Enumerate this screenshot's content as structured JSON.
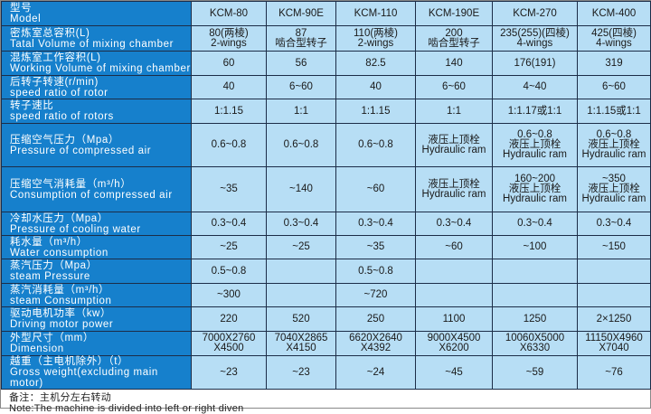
{
  "table": {
    "rows": [
      {
        "label": "型号\nModel",
        "values": [
          "KCM-80",
          "KCM-90E",
          "KCM-110",
          "KCM-190E",
          "KCM-270",
          "KCM-400"
        ]
      },
      {
        "label": "密炼室总容积(L)\nTatal Volume of mixing chamber",
        "values": [
          "80(两棱)\n2-wings",
          "87\n啮合型转子",
          "110(两棱)\n2-wings",
          "200\n啮合型转子",
          "235(255)(四棱)\n4-wings",
          "425(四棱)\n4-wings"
        ]
      },
      {
        "label": "混炼室工作容积(L)\nWorking Volume of mixing chamber",
        "values": [
          "60",
          "56",
          "82.5",
          "140",
          "176(191)",
          "319"
        ]
      },
      {
        "label": "后转子转速(r/min)\nspeed ratio of rotor",
        "values": [
          "40",
          "6~60",
          "40",
          "6~60",
          "4~40",
          "6~60"
        ]
      },
      {
        "label": "转子速比\nspeed ratio of rotors",
        "values": [
          "1:1.15",
          "1:1",
          "1:1.15",
          "1:1",
          "1:1.17或1:1",
          "1:1.15或1:1"
        ]
      },
      {
        "label": "压缩空气压力（Mpa）\nPressure of compressed air",
        "values": [
          "0.6~0.8",
          "0.6~0.8",
          "0.6~0.8",
          "液压上顶栓\nHydraulic ram",
          "0.6~0.8\n液压上顶栓\nHydraulic ram",
          "0.6~0.8\n液压上顶栓\nHydraulic ram"
        ]
      },
      {
        "label": "压缩空气消耗量（m³/h）\nConsumption of compressed air",
        "values": [
          "~35",
          "~140",
          "~60",
          "液压上顶栓\nHydraulic ram",
          "160~200\n液压上顶栓\nHydraulic ram",
          "~350\n液压上顶栓\nHydraulic ram"
        ]
      },
      {
        "label": "冷却水压力（Mpa）\nPressure of cooling water",
        "values": [
          "0.3~0.4",
          "0.3~0.4",
          "0.3~0.4",
          "0.3~0.4",
          "0.3~0.4",
          "0.3~0.4"
        ]
      },
      {
        "label": "耗水量（m³/h）\nWater consumption",
        "values": [
          "~25",
          "~25",
          "~35",
          "~60",
          "~100",
          "~150"
        ]
      },
      {
        "label": "蒸汽压力（Mpa）\nsteam Pressure",
        "values": [
          "0.5~0.8",
          "",
          "0.5~0.8",
          "",
          "",
          ""
        ]
      },
      {
        "label": "蒸汽消耗量（m³/h）\nsteam Consumption",
        "values": [
          "~300",
          "",
          "~720",
          "",
          "",
          ""
        ]
      },
      {
        "label": "驱动电机功率（kw）\nDriving motor power",
        "values": [
          "220",
          "520",
          "250",
          "1100",
          "1250",
          "2×1250"
        ]
      },
      {
        "label": "外型尺寸（mm）\nDimension",
        "values": [
          "7000X2760\nX4500",
          "7040X2865\nX4150",
          "6620X2640\nX4392",
          "9000X4500\nX6200",
          "10060X5000\nX6330",
          "11150X4960\nX7040"
        ]
      },
      {
        "label": "越重（主电机除外）（t）\nGross weight(excluding main motor)",
        "values": [
          "~23",
          "~23",
          "~24",
          "~45",
          "~59",
          "~76"
        ]
      }
    ]
  },
  "note": {
    "zh": "备注：主机分左右转动",
    "en": "Note:The machine is divided into left or right diven"
  },
  "colors": {
    "label_bg": "#1680cc",
    "cell_bg": "#b7def5",
    "border": "#1c2d48"
  }
}
